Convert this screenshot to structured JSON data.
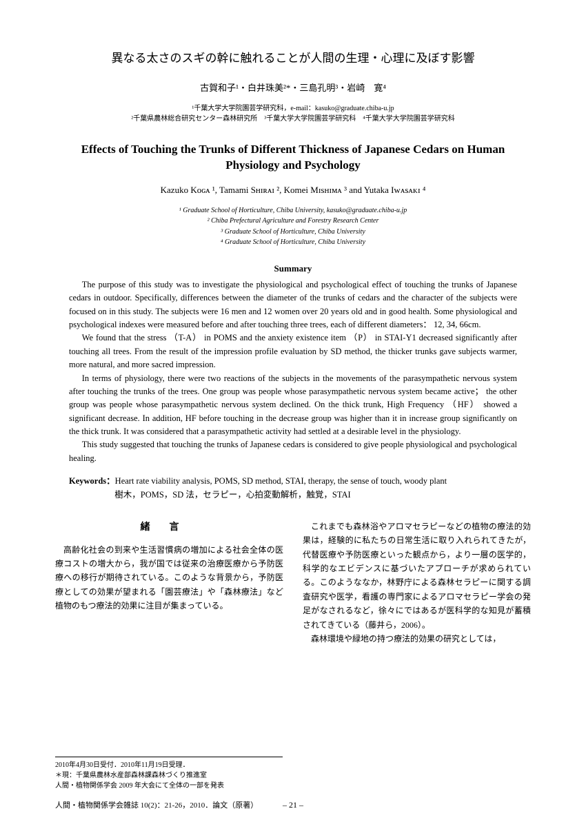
{
  "title_jp": "異なる太さのスギの幹に触れることが人間の生理・心理に及ぼす影響",
  "authors_jp": "古賀和子¹・白井珠美²*・三島孔明³・岩崎　寛⁴",
  "affil_jp_line1": "¹千葉大学大学院園芸学研究科，e-mail：kasuko@graduate.chiba-u.jp",
  "affil_jp_line2": "²千葉県農林総合研究センター森林研究所　³千葉大学大学院園芸学研究科　⁴千葉大学大学院園芸学研究科",
  "title_en_line1": "Effects of Touching the Trunks of Different Thickness of Japanese Cedars on Human",
  "title_en_line2": "Physiology and Psychology",
  "authors_en": "Kazuko Kᴏɢᴀ ¹, Tamami Sʜɪʀᴀɪ ², Komei Mɪsʜɪᴍᴀ ³ and Yutaka Iᴡᴀsᴀᴋɪ ⁴",
  "affil_en_1": "¹ Graduate School of Horticulture, Chiba University, kasuko@graduate.chiba-u.jp",
  "affil_en_2": "² Chiba Prefectural Agriculture and Forestry Research Center",
  "affil_en_3": "³ Graduate School of Horticulture, Chiba University",
  "affil_en_4": "⁴ Graduate School of Horticulture, Chiba University",
  "summary_heading": "Summary",
  "summary_p1": "The purpose of this study was to investigate the physiological and psychological effect of touching the trunks of Japanese cedars in outdoor. Specifically, differences between the diameter of the trunks of cedars and the character of the subjects were focused on in this study.  The subjects were 16 men and 12 women over 20 years old and in good health. Some physiological and psychological indexes were measured before and after touching three trees, each of different diameters： 12, 34, 66cm.",
  "summary_p2": "We found that the stress （T-A） in POMS and the anxiety existence item （P） in STAI-Y1 decreased significantly after touching all trees. From the result of the impression profile evaluation by SD method, the thicker trunks gave subjects warmer, more natural, and more sacred impression.",
  "summary_p3": "In terms of physiology, there were two reactions of the subjects in the movements of the parasympathetic nervous system after touching the trunks of the trees. One group was people whose parasympathetic nervous system became active； the other group was people whose parasympathetic nervous system declined. On the thick trunk, High Frequency （HF） showed a significant decrease.  In addition, HF before touching in the decrease group was higher than it in increase group significantly on the thick trunk. It was considered that a parasympathetic activity had settled at a desirable level in the physiology.",
  "summary_p4": "This study suggested that touching the trunks of Japanese cedars is considered to give people physiological and psychological healing.",
  "keywords_label": "Keywords：",
  "keywords_en": "Heart rate viability analysis, POMS, SD method, STAI, therapy, the sense of touch, woody plant",
  "keywords_jp": "樹木，POMS，SD 法，セラピー，心拍変動解析，触覚，STAI",
  "section_heading": "緒言",
  "col_left": "高齢化社会の到来や生活習慣病の増加による社会全体の医療コストの増大から，我が国では従来の治療医療から予防医療への移行が期待されている。このような背景から，予防医療としての効果が望まれる「園芸療法」や「森林療法」など植物のもつ療法的効果に注目が集まっている。",
  "col_right_p1": "これまでも森林浴やアロマセラピーなどの植物の療法的効果は，経験的に私たちの日常生活に取り入れられてきたが，代替医療や予防医療といった観点から，より一層の医学的，科学的なエビデンスに基づいたアプローチが求められている。このようななか，林野庁による森林セラピーに関する調査研究や医学，看護の専門家によるアロマセラピー学会の発足がなされるなど，徐々にではあるが医科学的な知見が蓄積されてきている（藤井ら，2006）。",
  "col_right_p2": "森林環境や緑地の持つ療法的効果の研究としては，",
  "footnote_1": "2010年4月30日受付．2010年11月19日受理．",
  "footnote_2": "＊現：千葉県農林水産部森林課森林づくり推進室",
  "footnote_3": "人間・植物関係学会 2009 年大会にて全体の一部を発表",
  "citation": "人間・植物関係学会雑誌 10(2)：21-26，2010．論文（原著）",
  "pagenum": "– 21 –"
}
